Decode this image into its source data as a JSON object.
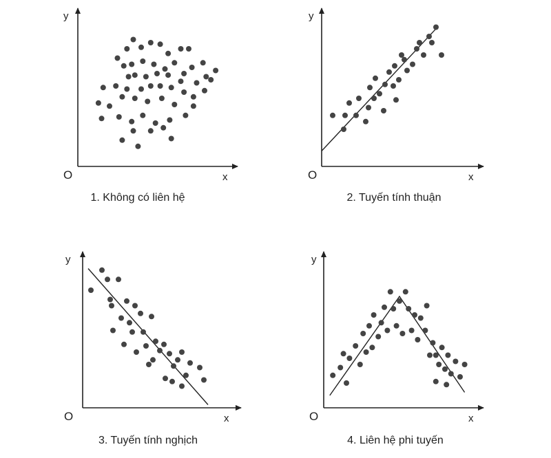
{
  "colors": {
    "ink": "#222222",
    "point": "#444444",
    "background": "#ffffff"
  },
  "chart_data": [
    {
      "type": "scatter",
      "caption": "1. Không có liên hệ",
      "xlabel": "x",
      "ylabel": "y",
      "origin": "O",
      "xlim": [
        0,
        10
      ],
      "ylim": [
        0,
        10
      ],
      "grid": false,
      "points": [
        [
          3.1,
          7.6
        ],
        [
          3.5,
          8.2
        ],
        [
          4.0,
          7.7
        ],
        [
          4.6,
          8.0
        ],
        [
          5.2,
          7.9
        ],
        [
          5.7,
          7.3
        ],
        [
          6.5,
          7.6
        ],
        [
          7.0,
          7.6
        ],
        [
          2.5,
          7.0
        ],
        [
          2.9,
          6.5
        ],
        [
          3.4,
          6.6
        ],
        [
          4.1,
          6.8
        ],
        [
          4.8,
          6.6
        ],
        [
          5.5,
          6.3
        ],
        [
          6.1,
          6.7
        ],
        [
          7.2,
          6.4
        ],
        [
          7.9,
          6.7
        ],
        [
          8.7,
          6.2
        ],
        [
          6.7,
          6.0
        ],
        [
          8.1,
          5.8
        ],
        [
          3.2,
          5.8
        ],
        [
          3.6,
          5.9
        ],
        [
          4.3,
          5.8
        ],
        [
          5.0,
          6.0
        ],
        [
          5.7,
          5.9
        ],
        [
          6.5,
          5.5
        ],
        [
          7.5,
          5.4
        ],
        [
          8.4,
          5.6
        ],
        [
          1.6,
          5.1
        ],
        [
          2.4,
          5.2
        ],
        [
          3.1,
          5.0
        ],
        [
          4.0,
          5.0
        ],
        [
          4.6,
          5.2
        ],
        [
          5.2,
          5.2
        ],
        [
          5.9,
          5.1
        ],
        [
          6.7,
          4.8
        ],
        [
          7.3,
          4.5
        ],
        [
          8.0,
          4.9
        ],
        [
          1.3,
          4.1
        ],
        [
          2.0,
          3.9
        ],
        [
          2.8,
          4.5
        ],
        [
          3.6,
          4.4
        ],
        [
          4.4,
          4.2
        ],
        [
          5.3,
          4.4
        ],
        [
          6.1,
          4.0
        ],
        [
          7.3,
          3.9
        ],
        [
          1.5,
          3.1
        ],
        [
          2.6,
          3.2
        ],
        [
          3.4,
          2.9
        ],
        [
          4.1,
          3.3
        ],
        [
          4.9,
          2.8
        ],
        [
          5.8,
          3.0
        ],
        [
          6.8,
          3.3
        ],
        [
          3.5,
          2.3
        ],
        [
          4.6,
          2.3
        ],
        [
          5.4,
          2.5
        ],
        [
          2.8,
          1.7
        ],
        [
          3.8,
          1.3
        ],
        [
          5.9,
          1.8
        ]
      ]
    },
    {
      "type": "scatter",
      "caption": "2. Tuyến tính thuận",
      "xlabel": "x",
      "ylabel": "y",
      "origin": "O",
      "xlim": [
        0,
        10
      ],
      "ylim": [
        0,
        10
      ],
      "grid": false,
      "trend": [
        [
          0,
          1.0
        ],
        [
          8.3,
          8.9
        ]
      ],
      "points": [
        [
          0.8,
          3.3
        ],
        [
          1.6,
          2.4
        ],
        [
          1.7,
          3.3
        ],
        [
          2.0,
          4.1
        ],
        [
          2.5,
          3.3
        ],
        [
          2.7,
          4.4
        ],
        [
          3.2,
          2.9
        ],
        [
          3.4,
          3.8
        ],
        [
          3.5,
          5.1
        ],
        [
          3.8,
          4.4
        ],
        [
          3.9,
          5.7
        ],
        [
          4.2,
          4.7
        ],
        [
          4.5,
          3.6
        ],
        [
          4.6,
          5.3
        ],
        [
          4.9,
          6.1
        ],
        [
          5.2,
          5.2
        ],
        [
          5.3,
          6.5
        ],
        [
          5.4,
          4.3
        ],
        [
          5.6,
          5.6
        ],
        [
          5.8,
          7.2
        ],
        [
          6.0,
          6.9
        ],
        [
          6.2,
          6.2
        ],
        [
          6.6,
          6.6
        ],
        [
          6.9,
          7.6
        ],
        [
          7.1,
          8.0
        ],
        [
          7.4,
          7.2
        ],
        [
          7.8,
          8.4
        ],
        [
          8.0,
          8.0
        ],
        [
          8.3,
          9.0
        ],
        [
          8.7,
          7.2
        ]
      ]
    },
    {
      "type": "scatter",
      "caption": "3. Tuyến tính nghịch",
      "xlabel": "x",
      "ylabel": "y",
      "origin": "O",
      "xlim": [
        0,
        10
      ],
      "ylim": [
        0,
        10
      ],
      "grid": false,
      "trend": [
        [
          0.4,
          9.0
        ],
        [
          9.1,
          0.2
        ]
      ],
      "points": [
        [
          0.6,
          7.6
        ],
        [
          1.4,
          8.9
        ],
        [
          1.8,
          8.3
        ],
        [
          2.0,
          7.0
        ],
        [
          2.1,
          6.6
        ],
        [
          2.2,
          5.0
        ],
        [
          2.6,
          8.3
        ],
        [
          2.8,
          5.8
        ],
        [
          3.0,
          4.1
        ],
        [
          3.2,
          6.9
        ],
        [
          3.4,
          5.5
        ],
        [
          3.6,
          4.9
        ],
        [
          3.8,
          6.6
        ],
        [
          3.9,
          3.6
        ],
        [
          4.2,
          6.1
        ],
        [
          4.4,
          4.9
        ],
        [
          4.6,
          4.0
        ],
        [
          4.8,
          2.8
        ],
        [
          5.0,
          5.9
        ],
        [
          5.1,
          3.1
        ],
        [
          5.3,
          4.3
        ],
        [
          5.6,
          3.7
        ],
        [
          5.9,
          4.1
        ],
        [
          6.0,
          1.9
        ],
        [
          6.3,
          3.5
        ],
        [
          6.6,
          2.7
        ],
        [
          6.9,
          3.1
        ],
        [
          7.2,
          3.6
        ],
        [
          7.5,
          2.1
        ],
        [
          7.8,
          2.9
        ],
        [
          8.5,
          2.6
        ],
        [
          8.8,
          1.8
        ],
        [
          7.2,
          1.4
        ],
        [
          6.5,
          1.7
        ]
      ]
    },
    {
      "type": "scatter",
      "caption": "4. Liên hệ phi tuyến",
      "xlabel": "x",
      "ylabel": "y",
      "origin": "O",
      "xlim": [
        0,
        10
      ],
      "ylim": [
        0,
        10
      ],
      "grid": false,
      "trend": [
        [
          0.4,
          0.8
        ],
        [
          5.0,
          7.2
        ],
        [
          9.3,
          1.0
        ]
      ],
      "points": [
        [
          0.6,
          2.1
        ],
        [
          1.1,
          2.6
        ],
        [
          1.3,
          3.5
        ],
        [
          1.5,
          1.6
        ],
        [
          1.7,
          3.2
        ],
        [
          2.1,
          4.0
        ],
        [
          2.4,
          2.8
        ],
        [
          2.6,
          4.8
        ],
        [
          2.8,
          3.6
        ],
        [
          3.0,
          5.3
        ],
        [
          3.2,
          3.9
        ],
        [
          3.3,
          6.0
        ],
        [
          3.6,
          4.6
        ],
        [
          3.8,
          5.5
        ],
        [
          4.0,
          6.5
        ],
        [
          4.2,
          5.0
        ],
        [
          4.4,
          7.5
        ],
        [
          4.6,
          6.4
        ],
        [
          4.8,
          5.3
        ],
        [
          5.0,
          6.9
        ],
        [
          5.2,
          4.8
        ],
        [
          5.4,
          7.5
        ],
        [
          5.6,
          6.4
        ],
        [
          5.8,
          5.0
        ],
        [
          6.0,
          6.0
        ],
        [
          6.2,
          4.4
        ],
        [
          6.4,
          5.8
        ],
        [
          6.7,
          5.0
        ],
        [
          6.8,
          6.6
        ],
        [
          7.0,
          3.4
        ],
        [
          7.2,
          4.2
        ],
        [
          7.4,
          3.4
        ],
        [
          7.6,
          2.8
        ],
        [
          7.8,
          3.9
        ],
        [
          8.0,
          2.5
        ],
        [
          8.2,
          3.4
        ],
        [
          8.4,
          2.2
        ],
        [
          8.7,
          3.0
        ],
        [
          9.0,
          2.0
        ],
        [
          9.3,
          2.8
        ],
        [
          7.4,
          1.7
        ],
        [
          8.1,
          1.5
        ]
      ]
    }
  ]
}
